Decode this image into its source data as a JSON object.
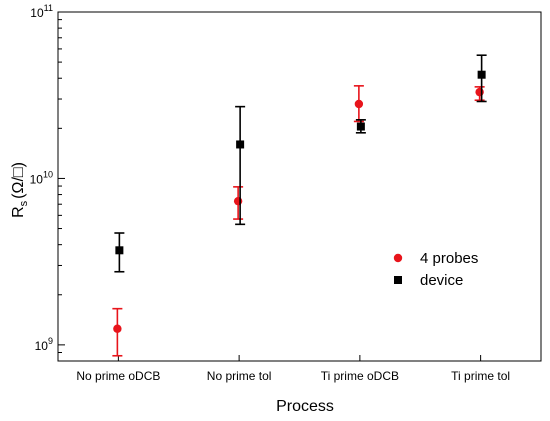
{
  "chart_data": {
    "type": "scatter",
    "title": "",
    "xlabel": "Process",
    "ylabel": {
      "main": "R",
      "sub": "s",
      "unit": "(Ω/□)"
    },
    "yscale": "log",
    "ylim": [
      800000000,
      100000000000
    ],
    "categories": [
      "No prime oDCB",
      "No prime tol",
      "Ti prime oDCB",
      "Ti prime tol"
    ],
    "y_tick_labels": [
      {
        "base": "10",
        "exp": "9",
        "value": 1000000000
      },
      {
        "base": "10",
        "exp": "10",
        "value": 10000000000
      },
      {
        "base": "10",
        "exp": "11",
        "value": 100000000000
      }
    ],
    "legend_position": "right-middle",
    "grid": false,
    "series": [
      {
        "name": "4 probes",
        "marker": "circle",
        "color": "#e8141b",
        "values": [
          1250000000,
          7300000000,
          28000000000,
          33000000000
        ],
        "err_low": [
          860000000,
          5700000000,
          22000000000,
          29500000000
        ],
        "err_high": [
          1650000000,
          8900000000,
          36000000000,
          35500000000
        ]
      },
      {
        "name": "device",
        "marker": "square",
        "color": "#000000",
        "values": [
          3700000000,
          16000000000,
          20500000000,
          42000000000
        ],
        "err_low": [
          2750000000,
          5300000000,
          18800000000,
          29000000000
        ],
        "err_high": [
          4700000000,
          27000000000,
          22500000000,
          55000000000
        ]
      }
    ]
  }
}
